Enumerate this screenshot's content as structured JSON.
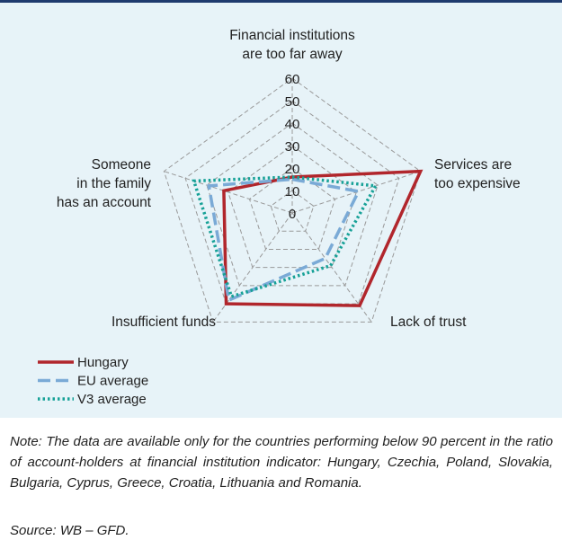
{
  "chart_data": {
    "type": "radar",
    "categories": [
      "Financial institutions\nare too far away",
      "Services are\ntoo expensive",
      "Lack of trust",
      "Insufficient funds",
      "Someone\nin the family\nhas an account"
    ],
    "series": [
      {
        "name": "Hungary",
        "color": "#b1262c",
        "style": "solid",
        "values": [
          16,
          60,
          51,
          50,
          32
        ]
      },
      {
        "name": "EU average",
        "color": "#7aaad6",
        "style": "dashed",
        "values": [
          15,
          31,
          25,
          48,
          39
        ]
      },
      {
        "name": "V3 average",
        "color": "#17a197",
        "style": "dotted",
        "values": [
          16,
          39,
          29,
          46,
          46
        ]
      }
    ],
    "ylim": [
      0,
      60
    ],
    "yticks": [
      0,
      10,
      20,
      30,
      40,
      50,
      60
    ],
    "grid": true
  },
  "note": "Note: The data are available only for the countries performing below 90 percent in the ratio of account-holders at financial institution indicator: Hungary, Czechia, Poland, Slovakia, Bulgaria, Cyprus, Greece, Croatia, Lithuania and Romania.",
  "source": "Source: WB – GFD."
}
